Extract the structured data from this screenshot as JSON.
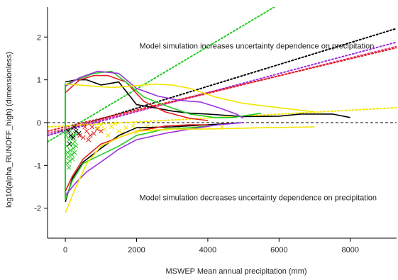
{
  "chart_data": {
    "type": "line",
    "xlabel": "MSWEP Mean annual precipitation (mm)",
    "ylabel": "log10(alpha_RUNOFF_high) (dimensionless)",
    "xlim": [
      -500,
      9300
    ],
    "ylim": [
      -2.7,
      2.7
    ],
    "xticks": [
      0,
      2000,
      4000,
      6000,
      8000
    ],
    "yticks": [
      -2,
      -1,
      0,
      1,
      2
    ],
    "grid": false,
    "reference_line_y": 0,
    "annotations": [
      {
        "text": "Model simulation increases uncertainty dependence on precipitation",
        "x": 2080,
        "y": 1.8
      },
      {
        "text": "Model simulation decreases uncertainty dependence on precipitation",
        "x": 2080,
        "y": -1.75
      }
    ],
    "colors": {
      "black": "#000000",
      "red": "#e02020",
      "green": "#22cc22",
      "purple": "#9b30e0",
      "yellow": "#f2e600",
      "magenta": "#ee3a8c"
    },
    "upper_curves": [
      {
        "color": "black",
        "points": [
          [
            0,
            0.95
          ],
          [
            300,
            1.0
          ],
          [
            600,
            1.0
          ],
          [
            1000,
            0.88
          ],
          [
            1500,
            0.95
          ],
          [
            2000,
            0.42
          ],
          [
            2500,
            0.35
          ],
          [
            3000,
            0.27
          ],
          [
            3500,
            0.22
          ],
          [
            4000,
            0.2
          ],
          [
            5000,
            0.14
          ],
          [
            6000,
            0.15
          ],
          [
            6600,
            0.2
          ],
          [
            7500,
            0.2
          ],
          [
            8000,
            0.12
          ]
        ]
      },
      {
        "color": "red",
        "points": [
          [
            0,
            0.7
          ],
          [
            400,
            1.0
          ],
          [
            800,
            1.1
          ],
          [
            1200,
            1.1
          ],
          [
            1700,
            0.95
          ],
          [
            2200,
            0.5
          ],
          [
            2800,
            0.25
          ],
          [
            3500,
            0.1
          ],
          [
            4000,
            0.05
          ]
        ]
      },
      {
        "color": "green",
        "points": [
          [
            0,
            0.88
          ],
          [
            300,
            1.0
          ],
          [
            800,
            1.15
          ],
          [
            1300,
            1.2
          ],
          [
            1700,
            0.95
          ],
          [
            2200,
            0.6
          ],
          [
            2800,
            0.4
          ],
          [
            3500,
            0.2
          ],
          [
            4200,
            0.12
          ],
          [
            4700,
            0.12
          ],
          [
            5500,
            0.22
          ]
        ]
      },
      {
        "color": "purple",
        "points": [
          [
            0,
            0.85
          ],
          [
            400,
            1.05
          ],
          [
            900,
            1.2
          ],
          [
            1500,
            1.15
          ],
          [
            2000,
            0.8
          ],
          [
            2600,
            0.62
          ],
          [
            3200,
            0.52
          ],
          [
            3800,
            0.48
          ],
          [
            4300,
            0.35
          ],
          [
            4800,
            0.2
          ],
          [
            5000,
            0.1
          ]
        ]
      },
      {
        "color": "yellow",
        "points": [
          [
            0,
            0.9
          ],
          [
            400,
            0.88
          ],
          [
            800,
            0.85
          ],
          [
            1300,
            0.82
          ],
          [
            1800,
            0.85
          ],
          [
            2500,
            0.9
          ],
          [
            3000,
            0.88
          ],
          [
            3500,
            0.8
          ],
          [
            4200,
            0.6
          ],
          [
            5000,
            0.45
          ],
          [
            6000,
            0.35
          ],
          [
            7000,
            0.25
          ]
        ]
      }
    ],
    "lower_curves": [
      {
        "color": "black",
        "points": [
          [
            0,
            -1.85
          ],
          [
            200,
            -1.3
          ],
          [
            500,
            -0.92
          ],
          [
            1000,
            -0.6
          ],
          [
            1500,
            -0.3
          ],
          [
            2000,
            -0.12
          ],
          [
            3000,
            -0.1
          ],
          [
            4000,
            -0.05
          ],
          [
            5000,
            0.0
          ]
        ]
      },
      {
        "color": "red",
        "points": [
          [
            0,
            -1.6
          ],
          [
            200,
            -1.25
          ],
          [
            500,
            -0.85
          ],
          [
            1000,
            -0.5
          ],
          [
            1500,
            -0.35
          ],
          [
            2000,
            -0.2
          ],
          [
            2800,
            -0.08
          ],
          [
            3500,
            -0.05
          ],
          [
            4000,
            -0.05
          ]
        ]
      },
      {
        "color": "green",
        "points": [
          [
            0,
            -1.8
          ],
          [
            200,
            -1.35
          ],
          [
            500,
            -0.95
          ],
          [
            1000,
            -0.75
          ],
          [
            1500,
            -0.55
          ],
          [
            2000,
            -0.3
          ],
          [
            2800,
            -0.15
          ],
          [
            3500,
            -0.12
          ],
          [
            4000,
            -0.08
          ]
        ]
      },
      {
        "color": "purple",
        "points": [
          [
            0,
            -1.7
          ],
          [
            300,
            -1.4
          ],
          [
            600,
            -1.15
          ],
          [
            1000,
            -0.92
          ],
          [
            1500,
            -0.62
          ],
          [
            2000,
            -0.4
          ],
          [
            2800,
            -0.25
          ],
          [
            3500,
            -0.15
          ],
          [
            4300,
            -0.05
          ],
          [
            5000,
            0.0
          ]
        ]
      },
      {
        "color": "yellow",
        "points": [
          [
            0,
            -2.1
          ],
          [
            300,
            -1.5
          ],
          [
            600,
            -0.95
          ],
          [
            1000,
            -0.55
          ],
          [
            1500,
            -0.35
          ],
          [
            2000,
            -0.2
          ],
          [
            3000,
            -0.15
          ],
          [
            4000,
            -0.15
          ],
          [
            5500,
            -0.12
          ],
          [
            7000,
            -0.1
          ]
        ]
      }
    ],
    "green_vertical": {
      "x": 0,
      "y_from": -1.8,
      "y_to": 0.92
    },
    "trend_lines": [
      {
        "color": "green",
        "x1": -500,
        "y1": -0.45,
        "x2": 9300,
        "y2": 4.4
      },
      {
        "color": "black",
        "x1": -500,
        "y1": -0.3,
        "x2": 9300,
        "y2": 2.2
      },
      {
        "color": "purple",
        "x1": -500,
        "y1": -0.3,
        "x2": 9300,
        "y2": 1.88
      },
      {
        "color": "magenta",
        "x1": -500,
        "y1": -0.25,
        "x2": 9300,
        "y2": 1.78
      },
      {
        "color": "red",
        "x1": -500,
        "y1": -0.2,
        "x2": 9300,
        "y2": 1.75
      },
      {
        "color": "yellow",
        "x1": -500,
        "y1": -0.1,
        "x2": 9300,
        "y2": 0.35
      }
    ],
    "scatter_groups": [
      {
        "color": "green",
        "points": [
          [
            20,
            -0.3
          ],
          [
            40,
            -0.55
          ],
          [
            60,
            -0.7
          ],
          [
            80,
            -0.8
          ],
          [
            100,
            -0.4
          ],
          [
            120,
            -0.9
          ],
          [
            140,
            -0.65
          ],
          [
            160,
            -0.35
          ],
          [
            180,
            -0.75
          ],
          [
            200,
            -0.5
          ],
          [
            220,
            -0.6
          ],
          [
            240,
            -0.3
          ],
          [
            260,
            -0.45
          ],
          [
            280,
            -0.25
          ],
          [
            300,
            -0.55
          ],
          [
            60,
            -0.95
          ],
          [
            100,
            -1.05
          ],
          [
            140,
            -0.2
          ],
          [
            200,
            -0.85
          ],
          [
            260,
            -0.7
          ]
        ]
      },
      {
        "color": "black",
        "points": [
          [
            80,
            -0.2
          ],
          [
            150,
            -0.3
          ],
          [
            220,
            -0.35
          ],
          [
            300,
            -0.2
          ],
          [
            380,
            -0.25
          ],
          [
            120,
            -0.5
          ],
          [
            250,
            -0.1
          ]
        ]
      },
      {
        "color": "red",
        "points": [
          [
            400,
            -0.3
          ],
          [
            500,
            -0.35
          ],
          [
            600,
            -0.2
          ],
          [
            700,
            -0.3
          ],
          [
            800,
            -0.25
          ],
          [
            900,
            -0.15
          ],
          [
            1000,
            -0.2
          ],
          [
            550,
            -0.1
          ],
          [
            750,
            -0.1
          ],
          [
            650,
            -0.4
          ]
        ]
      },
      {
        "color": "yellow",
        "points": [
          [
            900,
            -0.12
          ],
          [
            1100,
            -0.15
          ],
          [
            1300,
            -0.1
          ],
          [
            1500,
            -0.2
          ],
          [
            1700,
            -0.12
          ],
          [
            1900,
            -0.08
          ],
          [
            2100,
            -0.15
          ],
          [
            2300,
            -0.1
          ],
          [
            2500,
            -0.12
          ],
          [
            1200,
            -0.3
          ],
          [
            1600,
            -0.25
          ],
          [
            2000,
            -0.22
          ],
          [
            2400,
            -0.2
          ],
          [
            2800,
            -0.15
          ],
          [
            3200,
            -0.12
          ],
          [
            3600,
            -0.1
          ],
          [
            4000,
            -0.08
          ],
          [
            4400,
            -0.1
          ],
          [
            1000,
            -0.05
          ],
          [
            1400,
            -0.02
          ]
        ]
      }
    ]
  }
}
